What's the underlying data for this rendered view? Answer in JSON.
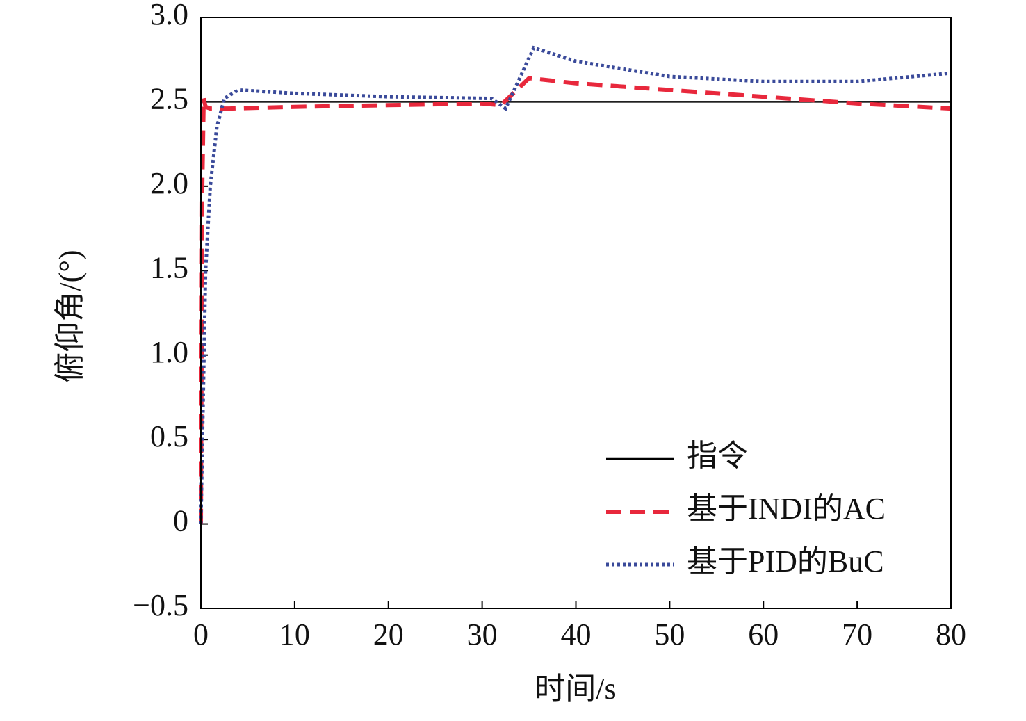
{
  "chart_data": {
    "type": "line",
    "x_label": "时间/s",
    "y_label": "俯仰角/(°)",
    "xlim": [
      0,
      80
    ],
    "xticks": [
      0,
      10,
      20,
      30,
      40,
      50,
      60,
      70,
      80
    ],
    "ylim": [
      -0.5,
      3.0
    ],
    "yticks": [
      {
        "value": -0.5,
        "label": "−0.5"
      },
      0,
      0.5,
      {
        "value": 1.0,
        "label": "1.0"
      },
      1.5,
      {
        "value": 2.0,
        "label": "2.0"
      },
      2.5,
      {
        "value": 3.0,
        "label": "3.0"
      }
    ],
    "legend": "lower right",
    "series": [
      {
        "name": "指令",
        "color": "#000000",
        "dash": "solid",
        "x": [
          0,
          80
        ],
        "values": [
          2.5,
          2.5
        ]
      },
      {
        "name": "基于INDI的AC",
        "color": "#e8283c",
        "dash": "dashed",
        "x": [
          0,
          0.15,
          0.3,
          0.5,
          1,
          3,
          10,
          20,
          30,
          32,
          35,
          40,
          50,
          60,
          70,
          80
        ],
        "values": [
          0,
          2.0,
          2.52,
          2.47,
          2.46,
          2.46,
          2.47,
          2.48,
          2.49,
          2.48,
          2.64,
          2.61,
          2.57,
          2.53,
          2.49,
          2.46
        ]
      },
      {
        "name": "基于PID的BuC",
        "color": "#3a4a9a",
        "dash": "dotted",
        "x": [
          0,
          0.5,
          1,
          1.7,
          2.5,
          4,
          10,
          20,
          31,
          32.5,
          35.5,
          40,
          50,
          60,
          70,
          80
        ],
        "values": [
          0,
          1.5,
          2.0,
          2.35,
          2.52,
          2.57,
          2.55,
          2.53,
          2.52,
          2.46,
          2.82,
          2.74,
          2.65,
          2.62,
          2.62,
          2.67
        ]
      }
    ]
  }
}
